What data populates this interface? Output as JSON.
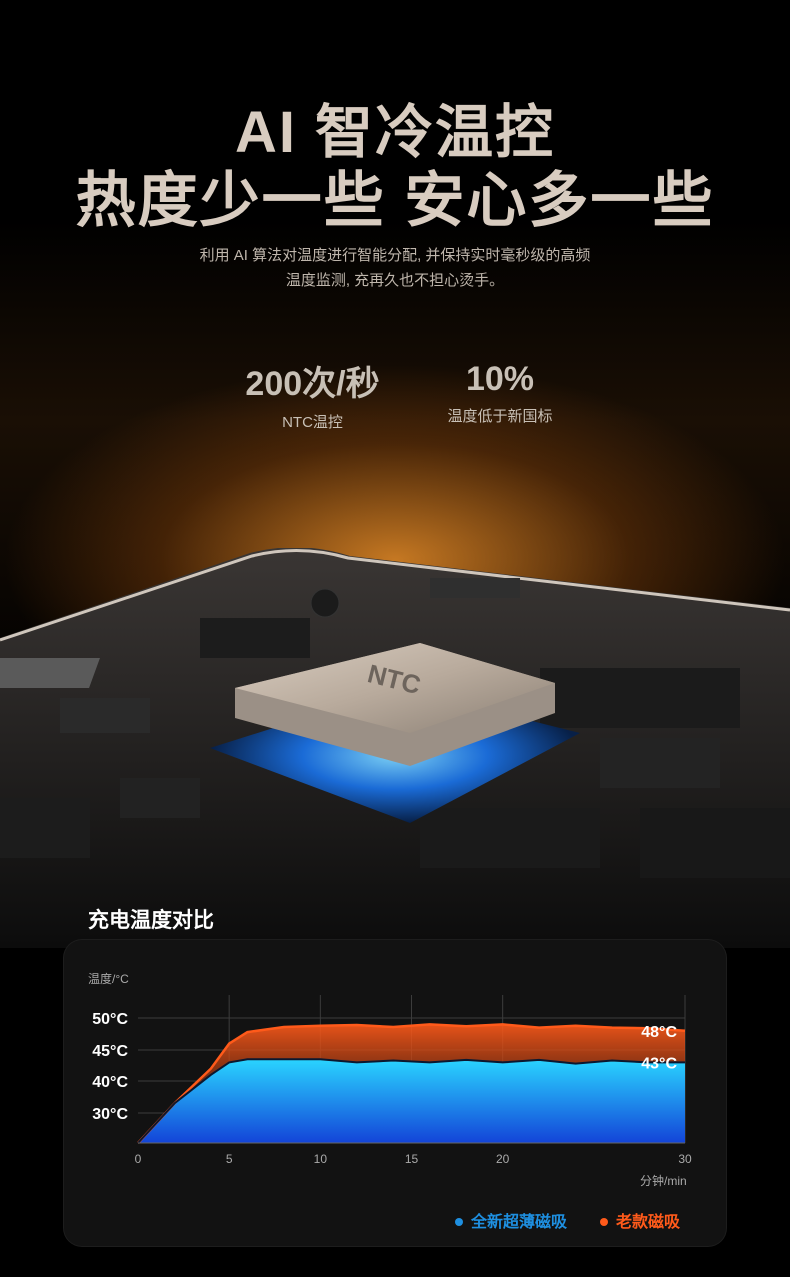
{
  "hero": {
    "title_line1": "AI 智冷温控",
    "title_line2": "热度少一些 安心多一些",
    "subtitle_line1": "利用 AI 算法对温度进行智能分配, 并保持实时毫秒级的高频",
    "subtitle_line2": "温度监测, 充再久也不担心烫手。"
  },
  "stats": [
    {
      "value": "200次/秒",
      "label": "NTC温控"
    },
    {
      "value": "10%",
      "label": "温度低于新国标"
    }
  ],
  "chip_label": "NTC",
  "colors": {
    "new_series": "#1e8fe0",
    "old_series": "#ff5a1a"
  },
  "chart_data": {
    "type": "area",
    "title": "充电温度对比",
    "ylabel": "温度/°C",
    "xlabel": "分钟/min",
    "x_ticks": [
      "0",
      "5",
      "10",
      "15",
      "20",
      "30"
    ],
    "y_ticks": [
      "50°C",
      "45°C",
      "40°C",
      "30°C"
    ],
    "x_tick_values": [
      0,
      5,
      10,
      15,
      20,
      30
    ],
    "y_tick_values": [
      50,
      45,
      40,
      30
    ],
    "xlim": [
      0,
      30
    ],
    "series": [
      {
        "name": "全新超薄磁吸",
        "end_label": "43°C",
        "color": "#1e8fe0",
        "x": [
          0,
          2,
          4,
          5,
          6,
          8,
          10,
          12,
          14,
          16,
          18,
          20,
          22,
          24,
          26,
          28,
          30
        ],
        "y": [
          20,
          33,
          41,
          43,
          43.5,
          43.5,
          43.5,
          43,
          43.3,
          43,
          43.4,
          43,
          43.4,
          42.8,
          43.3,
          43,
          43
        ]
      },
      {
        "name": "老款磁吸",
        "end_label": "48°C",
        "color": "#ff5a1a",
        "x": [
          0,
          2,
          4,
          5,
          6,
          8,
          10,
          12,
          14,
          16,
          18,
          20,
          22,
          24,
          26,
          28,
          30
        ],
        "y": [
          20,
          33,
          42,
          46,
          47.8,
          48.6,
          48.8,
          48.9,
          48.6,
          49,
          48.7,
          49,
          48.5,
          48.8,
          48.5,
          48.4,
          48
        ]
      }
    ]
  }
}
